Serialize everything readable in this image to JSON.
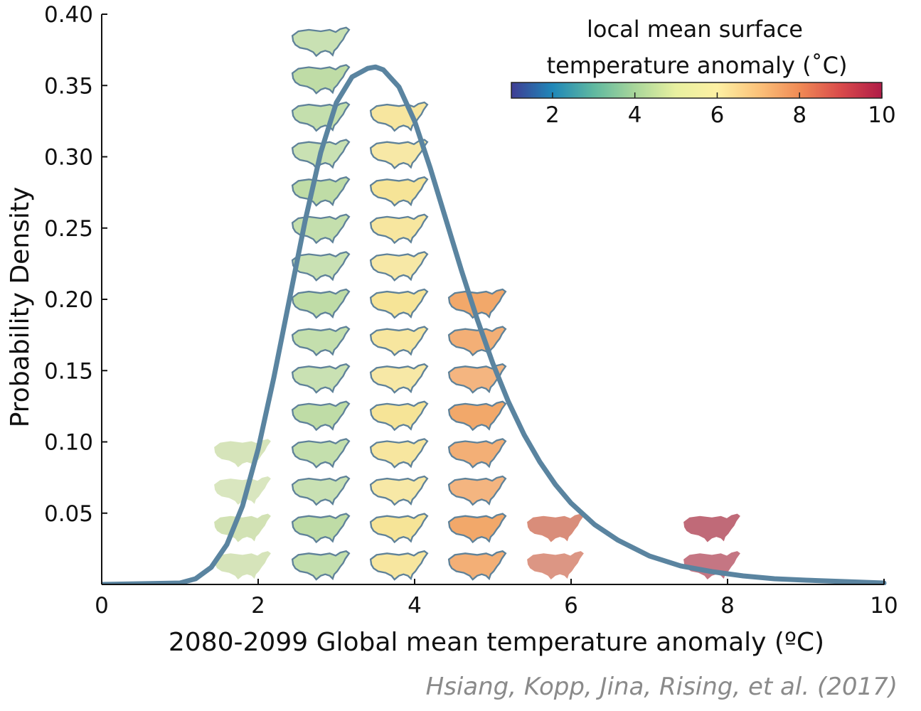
{
  "chart_data": {
    "type": "line",
    "xlabel": "2080-2099 Global mean temperature anomaly (ºC)",
    "ylabel": "Probability Density",
    "xlim": [
      0,
      10
    ],
    "ylim": [
      0,
      0.4
    ],
    "x_ticks": [
      "0",
      "2",
      "4",
      "6",
      "8",
      "10"
    ],
    "y_ticks": [
      "0.05",
      "0.10",
      "0.15",
      "0.20",
      "0.25",
      "0.30",
      "0.35",
      "0.40"
    ],
    "grid": false,
    "series": [
      {
        "color": "#5a84a0",
        "x": [
          0,
          1.0,
          1.2,
          1.4,
          1.6,
          1.8,
          2.0,
          2.2,
          2.4,
          2.6,
          2.8,
          3.0,
          3.2,
          3.4,
          3.5,
          3.6,
          3.8,
          4.0,
          4.2,
          4.4,
          4.6,
          4.8,
          5.0,
          5.2,
          5.4,
          5.6,
          5.8,
          6.0,
          6.3,
          6.6,
          7.0,
          7.4,
          7.8,
          8.2,
          8.6,
          9.0,
          9.5,
          10.0
        ],
        "y": [
          0.0,
          0.001,
          0.004,
          0.012,
          0.028,
          0.055,
          0.095,
          0.145,
          0.2,
          0.255,
          0.303,
          0.338,
          0.356,
          0.362,
          0.363,
          0.361,
          0.349,
          0.325,
          0.292,
          0.256,
          0.22,
          0.186,
          0.155,
          0.128,
          0.105,
          0.086,
          0.07,
          0.057,
          0.042,
          0.031,
          0.02,
          0.013,
          0.009,
          0.006,
          0.004,
          0.003,
          0.002,
          0.001
        ]
      }
    ],
    "map_thumbnails": [
      {
        "x": 1.8,
        "count": 4,
        "style": "borderless",
        "color": "#d2e2b4"
      },
      {
        "x": 2.8,
        "count": 15,
        "style": "outlined",
        "color": "#bfdca6"
      },
      {
        "x": 3.8,
        "count": 13,
        "style": "outlined",
        "color": "#f6e497"
      },
      {
        "x": 4.8,
        "count": 8,
        "style": "outlined",
        "color": "#f2a86a"
      },
      {
        "x": 5.8,
        "count": 2,
        "style": "borderless",
        "color": "#d98d7a"
      },
      {
        "x": 7.8,
        "count": 2,
        "style": "borderless",
        "color": "#c06a78"
      }
    ],
    "colorbar": {
      "title_line1": "local mean surface",
      "title_line2": "temperature anomaly (˚C)",
      "range": [
        1,
        10
      ],
      "ticks": [
        "2",
        "4",
        "6",
        "8",
        "10"
      ],
      "colors": [
        "#3f3d94",
        "#1f87b8",
        "#5fb8a0",
        "#a8d69a",
        "#e8f0a0",
        "#fdf0a3",
        "#fbc27a",
        "#f08a55",
        "#d94a4a",
        "#b01c48"
      ]
    },
    "credit": "Hsiang, Kopp, Jina, Rising, et al. (2017)"
  }
}
